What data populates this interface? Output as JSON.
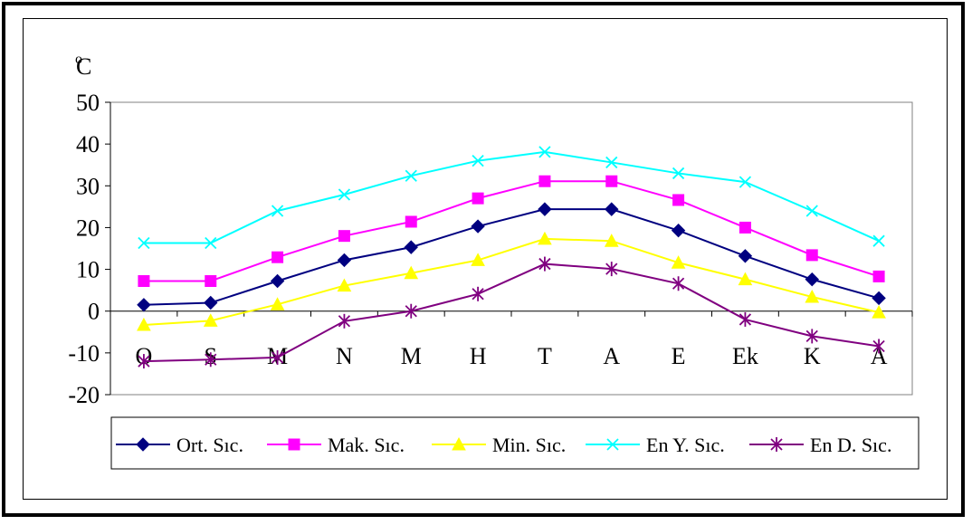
{
  "chart_data": {
    "type": "line",
    "unit_label": {
      "superscript": "o",
      "main": "C"
    },
    "categories": [
      "O",
      "S",
      "M",
      "N",
      "M",
      "H",
      "T",
      "A",
      "E",
      "Ek",
      "K",
      "A"
    ],
    "ylim": [
      -20,
      50
    ],
    "yticks": [
      "50",
      "40",
      "30",
      "20",
      "10",
      "0",
      "-10",
      "-20"
    ],
    "ytick_values": [
      50,
      40,
      30,
      20,
      10,
      0,
      -10,
      -20
    ],
    "grid": false,
    "legend_position": "bottom",
    "series": [
      {
        "name": "Ort. Sıc.",
        "color": "#000080",
        "marker": "diamond",
        "values": [
          1.5,
          2,
          7.2,
          12.2,
          15.3,
          20.3,
          24.4,
          24.4,
          19.3,
          13.2,
          7.6,
          3.1
        ]
      },
      {
        "name": "Mak. Sıc.",
        "color": "#FF00FF",
        "marker": "square",
        "values": [
          7.2,
          7.2,
          12.9,
          18,
          21.4,
          27,
          31.1,
          31.1,
          26.6,
          20,
          13.4,
          8.3
        ]
      },
      {
        "name": "Min. Sıc.",
        "color": "#FFFF00",
        "marker": "triangle",
        "values": [
          -3.3,
          -2.3,
          1.6,
          6.1,
          9.1,
          12.2,
          17.3,
          16.8,
          11.6,
          7.6,
          3.4,
          -0.3
        ]
      },
      {
        "name": "En Y. Sıc.",
        "color": "#00FFFF",
        "marker": "x",
        "values": [
          16.3,
          16.3,
          24,
          27.9,
          32.4,
          36,
          38.1,
          35.6,
          33,
          30.9,
          24,
          16.8
        ]
      },
      {
        "name": "En D. Sıc.",
        "color": "#800080",
        "marker": "star",
        "values": [
          -12,
          -11.6,
          -11.1,
          -2.4,
          0,
          4.1,
          11.3,
          10.1,
          6.6,
          -2,
          -6,
          -8.4
        ]
      }
    ]
  }
}
